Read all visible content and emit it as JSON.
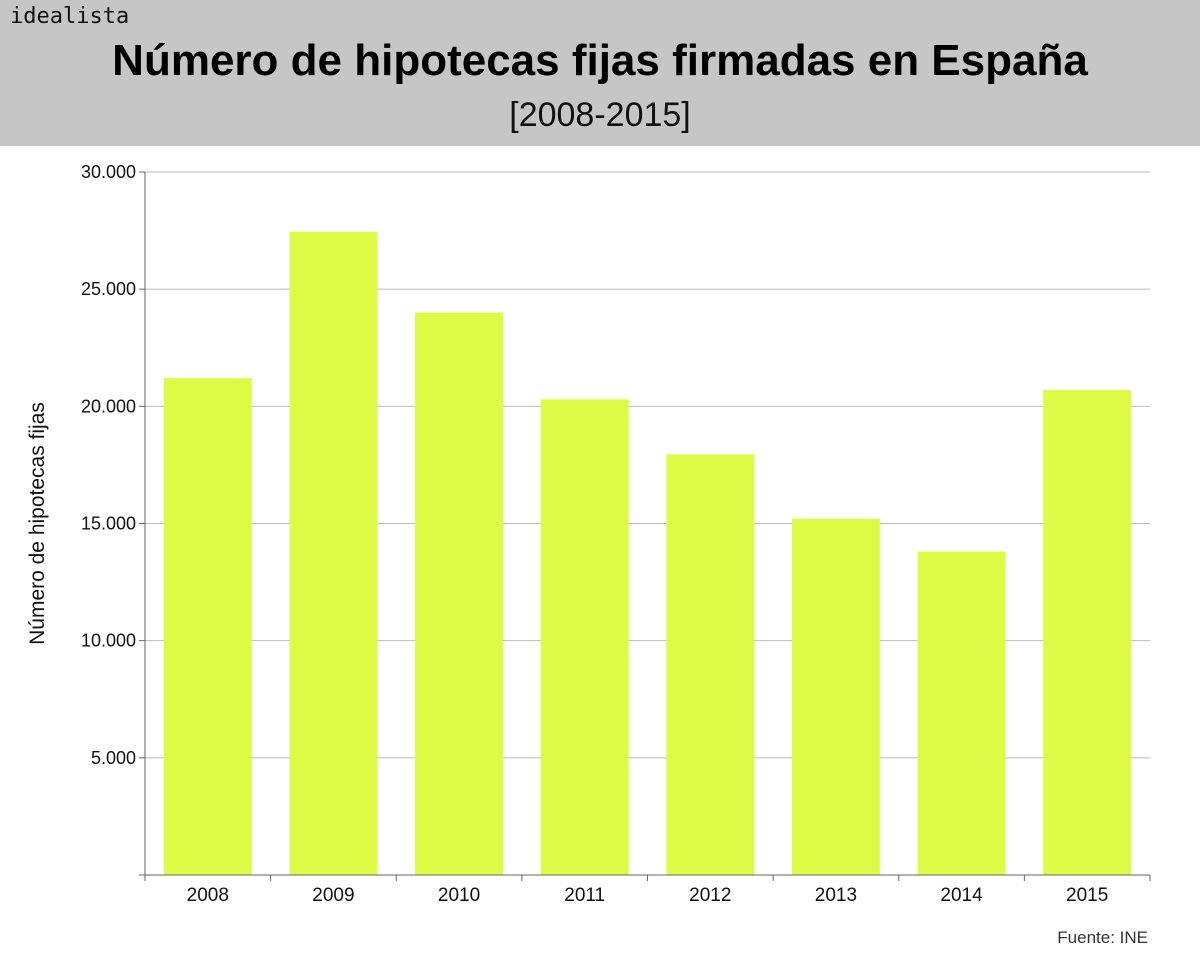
{
  "header": {
    "brand": "idealista",
    "title": "Número de hipotecas fijas firmadas en España",
    "subtitle": "[2008-2015]"
  },
  "source": "Fuente: INE",
  "colors": {
    "bar": "#ddfa45",
    "header_bg": "#c6c6c6",
    "grid": "#bbbbbb"
  },
  "chart_data": {
    "type": "bar",
    "categories": [
      "2008",
      "2009",
      "2010",
      "2011",
      "2012",
      "2013",
      "2014",
      "2015"
    ],
    "values": [
      21200,
      27450,
      24000,
      20300,
      17950,
      15200,
      13800,
      20700
    ],
    "ylabel": "Número de hipotecas fijas",
    "ylim": [
      0,
      30000
    ],
    "yticks": [
      5000,
      10000,
      15000,
      20000,
      25000,
      30000
    ],
    "ytick_labels": [
      "5.000",
      "10.000",
      "15.000",
      "20.000",
      "25.000",
      "30.000"
    ],
    "grid": true,
    "legend": "none"
  }
}
